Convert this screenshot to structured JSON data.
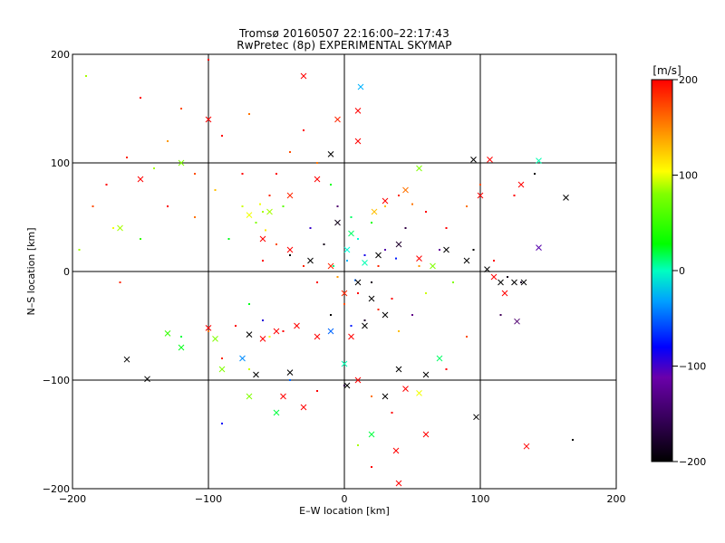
{
  "chart_data": {
    "type": "scatter",
    "title": "Tromsø 20160507 22:16:00–22:17:43",
    "subtitle": "RwPretec (8p) EXPERIMENTAL SKYMAP",
    "xlabel": "E–W location [km]",
    "ylabel": "N–S location [km]",
    "xlim": [
      -200,
      200
    ],
    "ylim": [
      -200,
      200
    ],
    "xticks": [
      -200,
      -100,
      0,
      100,
      200
    ],
    "yticks": [
      -200,
      -100,
      0,
      100,
      200
    ],
    "xtick_labels": [
      "−200",
      "−100",
      "0",
      "100",
      "200"
    ],
    "ytick_labels": [
      "−200",
      "−100",
      "0",
      "100",
      "200"
    ],
    "grid": true,
    "grid_lines_x": [
      -100,
      0,
      100
    ],
    "grid_lines_y": [
      -100,
      0,
      100
    ],
    "colorbar": {
      "label": "[m/s]",
      "range": [
        -200,
        200
      ],
      "ticks": [
        200,
        100,
        0,
        -100,
        -200
      ],
      "tick_labels": [
        "200",
        "100",
        "0",
        "−100",
        "−200"
      ],
      "colormap": [
        "#000000",
        "#6a0096",
        "#0000ff",
        "#00ffff",
        "#00ff00",
        "#ffff00",
        "#ff0000"
      ]
    },
    "marker_kinds": [
      "dot",
      "cross"
    ],
    "series": [
      {
        "marker": "dot",
        "points": [
          {
            "x": -150,
            "y": 160,
            "v": 200
          },
          {
            "x": -120,
            "y": 150,
            "v": 180
          },
          {
            "x": -100,
            "y": 140,
            "v": 190
          },
          {
            "x": -70,
            "y": 145,
            "v": 170
          },
          {
            "x": -90,
            "y": 125,
            "v": 200
          },
          {
            "x": -130,
            "y": 120,
            "v": 160
          },
          {
            "x": -160,
            "y": 105,
            "v": 190
          },
          {
            "x": -140,
            "y": 95,
            "v": 110
          },
          {
            "x": -175,
            "y": 80,
            "v": 200
          },
          {
            "x": -185,
            "y": 60,
            "v": 180
          },
          {
            "x": -170,
            "y": 40,
            "v": 130
          },
          {
            "x": -150,
            "y": 30,
            "v": 80
          },
          {
            "x": -130,
            "y": 60,
            "v": 200
          },
          {
            "x": -110,
            "y": 50,
            "v": 170
          },
          {
            "x": -95,
            "y": 75,
            "v": 150
          },
          {
            "x": -75,
            "y": 60,
            "v": 120
          },
          {
            "x": -65,
            "y": 45,
            "v": 100
          },
          {
            "x": -60,
            "y": 55,
            "v": 110
          },
          {
            "x": -55,
            "y": 70,
            "v": 190
          },
          {
            "x": -50,
            "y": 90,
            "v": 200
          },
          {
            "x": -40,
            "y": 110,
            "v": 180
          },
          {
            "x": -30,
            "y": 130,
            "v": 200
          },
          {
            "x": -20,
            "y": 100,
            "v": 170
          },
          {
            "x": -10,
            "y": 80,
            "v": 60
          },
          {
            "x": -5,
            "y": 60,
            "v": -150
          },
          {
            "x": 5,
            "y": 50,
            "v": 40
          },
          {
            "x": 10,
            "y": 30,
            "v": 10
          },
          {
            "x": 2,
            "y": 10,
            "v": -20
          },
          {
            "x": -8,
            "y": 5,
            "v": 30
          },
          {
            "x": 15,
            "y": 15,
            "v": -80
          },
          {
            "x": 20,
            "y": 45,
            "v": 70
          },
          {
            "x": 30,
            "y": 60,
            "v": 150
          },
          {
            "x": 40,
            "y": 70,
            "v": 190
          },
          {
            "x": 50,
            "y": 62,
            "v": 170
          },
          {
            "x": 60,
            "y": 55,
            "v": 200
          },
          {
            "x": 45,
            "y": 40,
            "v": -170
          },
          {
            "x": 30,
            "y": 20,
            "v": -120
          },
          {
            "x": 20,
            "y": -10,
            "v": -190
          },
          {
            "x": 10,
            "y": -20,
            "v": 200
          },
          {
            "x": 0,
            "y": -30,
            "v": 180
          },
          {
            "x": -10,
            "y": -40,
            "v": -200
          },
          {
            "x": 5,
            "y": -50,
            "v": -60
          },
          {
            "x": 15,
            "y": -45,
            "v": -180
          },
          {
            "x": 25,
            "y": -35,
            "v": 190
          },
          {
            "x": 35,
            "y": -25,
            "v": 200
          },
          {
            "x": 40,
            "y": -55,
            "v": 150
          },
          {
            "x": 50,
            "y": -40,
            "v": -140
          },
          {
            "x": 60,
            "y": -20,
            "v": 120
          },
          {
            "x": -20,
            "y": -10,
            "v": 200
          },
          {
            "x": -30,
            "y": 5,
            "v": 190
          },
          {
            "x": -40,
            "y": 15,
            "v": -200
          },
          {
            "x": -50,
            "y": 25,
            "v": 180
          },
          {
            "x": -35,
            "y": -50,
            "v": 170
          },
          {
            "x": -45,
            "y": -55,
            "v": 200
          },
          {
            "x": -55,
            "y": -60,
            "v": 130
          },
          {
            "x": -60,
            "y": -45,
            "v": -90
          },
          {
            "x": -70,
            "y": -30,
            "v": 60
          },
          {
            "x": -80,
            "y": -50,
            "v": 200
          },
          {
            "x": -100,
            "y": -55,
            "v": 170
          },
          {
            "x": -120,
            "y": -60,
            "v": 50
          },
          {
            "x": -90,
            "y": -80,
            "v": 190
          },
          {
            "x": -70,
            "y": -90,
            "v": 120
          },
          {
            "x": -40,
            "y": -100,
            "v": -40
          },
          {
            "x": -20,
            "y": -110,
            "v": 200
          },
          {
            "x": 0,
            "y": -105,
            "v": -170
          },
          {
            "x": 20,
            "y": -115,
            "v": 170
          },
          {
            "x": 35,
            "y": -130,
            "v": 200
          },
          {
            "x": 10,
            "y": -160,
            "v": 110
          },
          {
            "x": 60,
            "y": -150,
            "v": 190
          },
          {
            "x": 75,
            "y": -90,
            "v": 200
          },
          {
            "x": 90,
            "y": -60,
            "v": 180
          },
          {
            "x": 80,
            "y": -10,
            "v": 100
          },
          {
            "x": 95,
            "y": 20,
            "v": -200
          },
          {
            "x": 110,
            "y": 10,
            "v": 200
          },
          {
            "x": 120,
            "y": -5,
            "v": -190
          },
          {
            "x": 130,
            "y": -10,
            "v": -180
          },
          {
            "x": 115,
            "y": -40,
            "v": -160
          },
          {
            "x": 140,
            "y": 90,
            "v": -200
          },
          {
            "x": 125,
            "y": 70,
            "v": 200
          },
          {
            "x": 100,
            "y": 80,
            "v": 180
          },
          {
            "x": 90,
            "y": 60,
            "v": 170
          },
          {
            "x": 75,
            "y": 40,
            "v": 200
          },
          {
            "x": 70,
            "y": 20,
            "v": -130
          },
          {
            "x": 168,
            "y": -155,
            "v": -200
          },
          {
            "x": -145,
            "y": -99,
            "v": -200
          },
          {
            "x": -195,
            "y": 20,
            "v": 110
          },
          {
            "x": -190,
            "y": 180,
            "v": 110
          },
          {
            "x": -100,
            "y": 195,
            "v": 200
          },
          {
            "x": -90,
            "y": -140,
            "v": -70
          },
          {
            "x": 20,
            "y": -180,
            "v": 200
          },
          {
            "x": -165,
            "y": -10,
            "v": 190
          },
          {
            "x": -60,
            "y": 10,
            "v": 200
          },
          {
            "x": -75,
            "y": 90,
            "v": 200
          },
          {
            "x": -110,
            "y": 90,
            "v": 180
          },
          {
            "x": -85,
            "y": 30,
            "v": 60
          },
          {
            "x": -25,
            "y": 40,
            "v": -100
          },
          {
            "x": -15,
            "y": 25,
            "v": -190
          },
          {
            "x": -5,
            "y": -5,
            "v": 160
          },
          {
            "x": 8,
            "y": -8,
            "v": -40
          },
          {
            "x": 25,
            "y": 5,
            "v": 190
          },
          {
            "x": 38,
            "y": 12,
            "v": -60
          },
          {
            "x": 55,
            "y": 5,
            "v": 160
          },
          {
            "x": -45,
            "y": 60,
            "v": 90
          },
          {
            "x": -62,
            "y": 62,
            "v": 130
          },
          {
            "x": -58,
            "y": 38,
            "v": 140
          }
        ]
      },
      {
        "marker": "cross",
        "points": [
          {
            "x": -100,
            "y": 140,
            "v": 200
          },
          {
            "x": -30,
            "y": 180,
            "v": 200
          },
          {
            "x": 12,
            "y": 170,
            "v": -20
          },
          {
            "x": 10,
            "y": 148,
            "v": 200
          },
          {
            "x": -5,
            "y": 140,
            "v": 190
          },
          {
            "x": 10,
            "y": 120,
            "v": 200
          },
          {
            "x": -10,
            "y": 108,
            "v": -200
          },
          {
            "x": 95,
            "y": 103,
            "v": -200
          },
          {
            "x": 107,
            "y": 103,
            "v": 200
          },
          {
            "x": 130,
            "y": 80,
            "v": 200
          },
          {
            "x": 143,
            "y": 102,
            "v": 20
          },
          {
            "x": 163,
            "y": 68,
            "v": -200
          },
          {
            "x": 143,
            "y": 22,
            "v": -120
          },
          {
            "x": 100,
            "y": 70,
            "v": 200
          },
          {
            "x": 55,
            "y": 95,
            "v": 100
          },
          {
            "x": 45,
            "y": 75,
            "v": 170
          },
          {
            "x": 30,
            "y": 65,
            "v": 200
          },
          {
            "x": 22,
            "y": 55,
            "v": 150
          },
          {
            "x": -20,
            "y": 85,
            "v": 200
          },
          {
            "x": -40,
            "y": 70,
            "v": 190
          },
          {
            "x": -55,
            "y": 55,
            "v": 110
          },
          {
            "x": -70,
            "y": 52,
            "v": 130
          },
          {
            "x": -60,
            "y": 30,
            "v": 200
          },
          {
            "x": -40,
            "y": 20,
            "v": 200
          },
          {
            "x": -25,
            "y": 10,
            "v": -200
          },
          {
            "x": -10,
            "y": 5,
            "v": 190
          },
          {
            "x": -5,
            "y": 45,
            "v": -190
          },
          {
            "x": 5,
            "y": 35,
            "v": 40
          },
          {
            "x": 2,
            "y": 20,
            "v": 10
          },
          {
            "x": 15,
            "y": 8,
            "v": 20
          },
          {
            "x": 25,
            "y": 15,
            "v": -200
          },
          {
            "x": 40,
            "y": 25,
            "v": -180
          },
          {
            "x": 55,
            "y": 12,
            "v": 200
          },
          {
            "x": 65,
            "y": 5,
            "v": 100
          },
          {
            "x": 75,
            "y": 20,
            "v": -200
          },
          {
            "x": 90,
            "y": 10,
            "v": -200
          },
          {
            "x": 105,
            "y": 2,
            "v": -200
          },
          {
            "x": 115,
            "y": -10,
            "v": -200
          },
          {
            "x": 125,
            "y": -10,
            "v": -200
          },
          {
            "x": 132,
            "y": -10,
            "v": -200
          },
          {
            "x": 118,
            "y": -20,
            "v": 200
          },
          {
            "x": 127,
            "y": -46,
            "v": -150
          },
          {
            "x": 110,
            "y": -5,
            "v": 200
          },
          {
            "x": 10,
            "y": -10,
            "v": -200
          },
          {
            "x": 0,
            "y": -20,
            "v": 190
          },
          {
            "x": 20,
            "y": -25,
            "v": -200
          },
          {
            "x": 30,
            "y": -40,
            "v": -200
          },
          {
            "x": 15,
            "y": -50,
            "v": -200
          },
          {
            "x": 5,
            "y": -60,
            "v": 200
          },
          {
            "x": -10,
            "y": -55,
            "v": -40
          },
          {
            "x": -20,
            "y": -60,
            "v": 200
          },
          {
            "x": -35,
            "y": -50,
            "v": 200
          },
          {
            "x": -50,
            "y": -55,
            "v": 200
          },
          {
            "x": -60,
            "y": -62,
            "v": 200
          },
          {
            "x": -70,
            "y": -58,
            "v": -200
          },
          {
            "x": -95,
            "y": -62,
            "v": 100
          },
          {
            "x": -100,
            "y": -52,
            "v": 200
          },
          {
            "x": -130,
            "y": -57,
            "v": 80
          },
          {
            "x": -120,
            "y": -70,
            "v": 60
          },
          {
            "x": -160,
            "y": -81,
            "v": -200
          },
          {
            "x": -145,
            "y": -99,
            "v": -200
          },
          {
            "x": -90,
            "y": -90,
            "v": 100
          },
          {
            "x": -75,
            "y": -80,
            "v": -30
          },
          {
            "x": -65,
            "y": -95,
            "v": -200
          },
          {
            "x": -40,
            "y": -93,
            "v": -200
          },
          {
            "x": -45,
            "y": -115,
            "v": 200
          },
          {
            "x": -70,
            "y": -115,
            "v": 100
          },
          {
            "x": -30,
            "y": -125,
            "v": 200
          },
          {
            "x": -50,
            "y": -130,
            "v": 50
          },
          {
            "x": 0,
            "y": -85,
            "v": 20
          },
          {
            "x": 2,
            "y": -105,
            "v": -200
          },
          {
            "x": 10,
            "y": -100,
            "v": 200
          },
          {
            "x": 30,
            "y": -115,
            "v": -200
          },
          {
            "x": 45,
            "y": -108,
            "v": 200
          },
          {
            "x": 55,
            "y": -112,
            "v": 130
          },
          {
            "x": 60,
            "y": -95,
            "v": -200
          },
          {
            "x": 70,
            "y": -80,
            "v": 40
          },
          {
            "x": 40,
            "y": -90,
            "v": -200
          },
          {
            "x": 20,
            "y": -150,
            "v": 50
          },
          {
            "x": 60,
            "y": -150,
            "v": 200
          },
          {
            "x": 38,
            "y": -165,
            "v": 200
          },
          {
            "x": 97,
            "y": -134,
            "v": -200
          },
          {
            "x": 134,
            "y": -161,
            "v": 200
          },
          {
            "x": 40,
            "y": -195,
            "v": 200
          },
          {
            "x": -150,
            "y": 85,
            "v": 200
          },
          {
            "x": -120,
            "y": 100,
            "v": 100
          },
          {
            "x": -165,
            "y": 40,
            "v": 110
          }
        ]
      }
    ]
  }
}
